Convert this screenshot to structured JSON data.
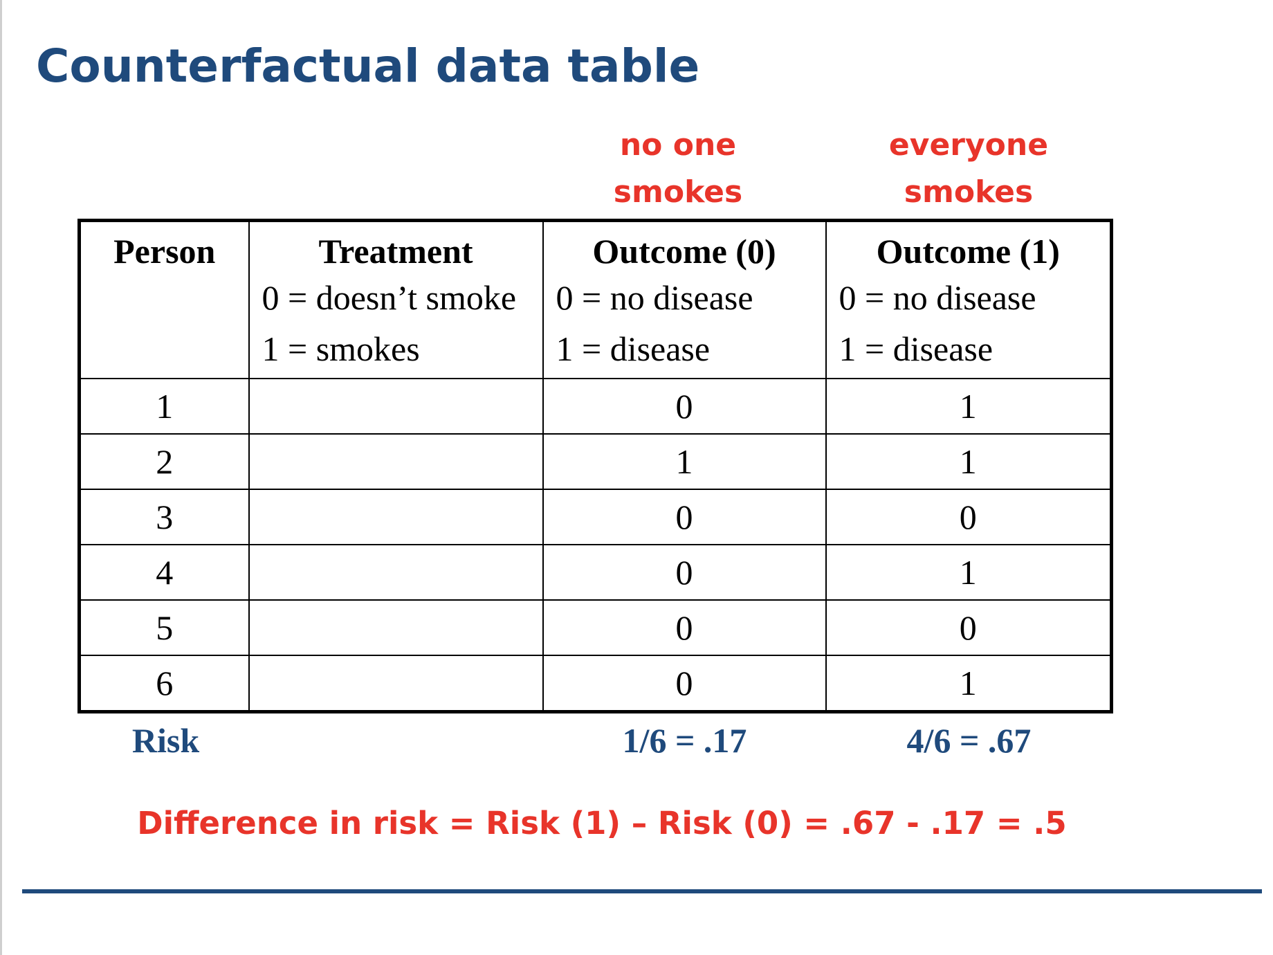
{
  "slide": {
    "title": "Counterfactual data table",
    "column_notes": {
      "outcome0": [
        "no one",
        "smokes"
      ],
      "outcome1": [
        "everyone",
        "smokes"
      ]
    },
    "table": {
      "headers": [
        {
          "title": "Person",
          "lines": []
        },
        {
          "title": "Treatment",
          "lines": [
            "0 = doesn’t smoke",
            "1 = smokes"
          ]
        },
        {
          "title": "Outcome (0)",
          "lines": [
            "0 = no disease",
            "1 = disease"
          ]
        },
        {
          "title": "Outcome (1)",
          "lines": [
            "0 = no disease",
            "1 = disease"
          ]
        }
      ],
      "rows": [
        {
          "person": "1",
          "treatment": "",
          "outcome0": "0",
          "outcome1": "1"
        },
        {
          "person": "2",
          "treatment": "",
          "outcome0": "1",
          "outcome1": "1"
        },
        {
          "person": "3",
          "treatment": "",
          "outcome0": "0",
          "outcome1": "0"
        },
        {
          "person": "4",
          "treatment": "",
          "outcome0": "0",
          "outcome1": "1"
        },
        {
          "person": "5",
          "treatment": "",
          "outcome0": "0",
          "outcome1": "0"
        },
        {
          "person": "6",
          "treatment": "",
          "outcome0": "0",
          "outcome1": "1"
        }
      ]
    },
    "risk": {
      "label": "Risk",
      "outcome0": "1/6 = .17",
      "outcome1": "4/6 = .67"
    },
    "difference": "Difference in risk = Risk (1) – Risk (0) = .67 - .17 = .5"
  },
  "colors": {
    "title_blue": "#1f4a7c",
    "accent_red": "#e8342a",
    "border": "#000000"
  }
}
